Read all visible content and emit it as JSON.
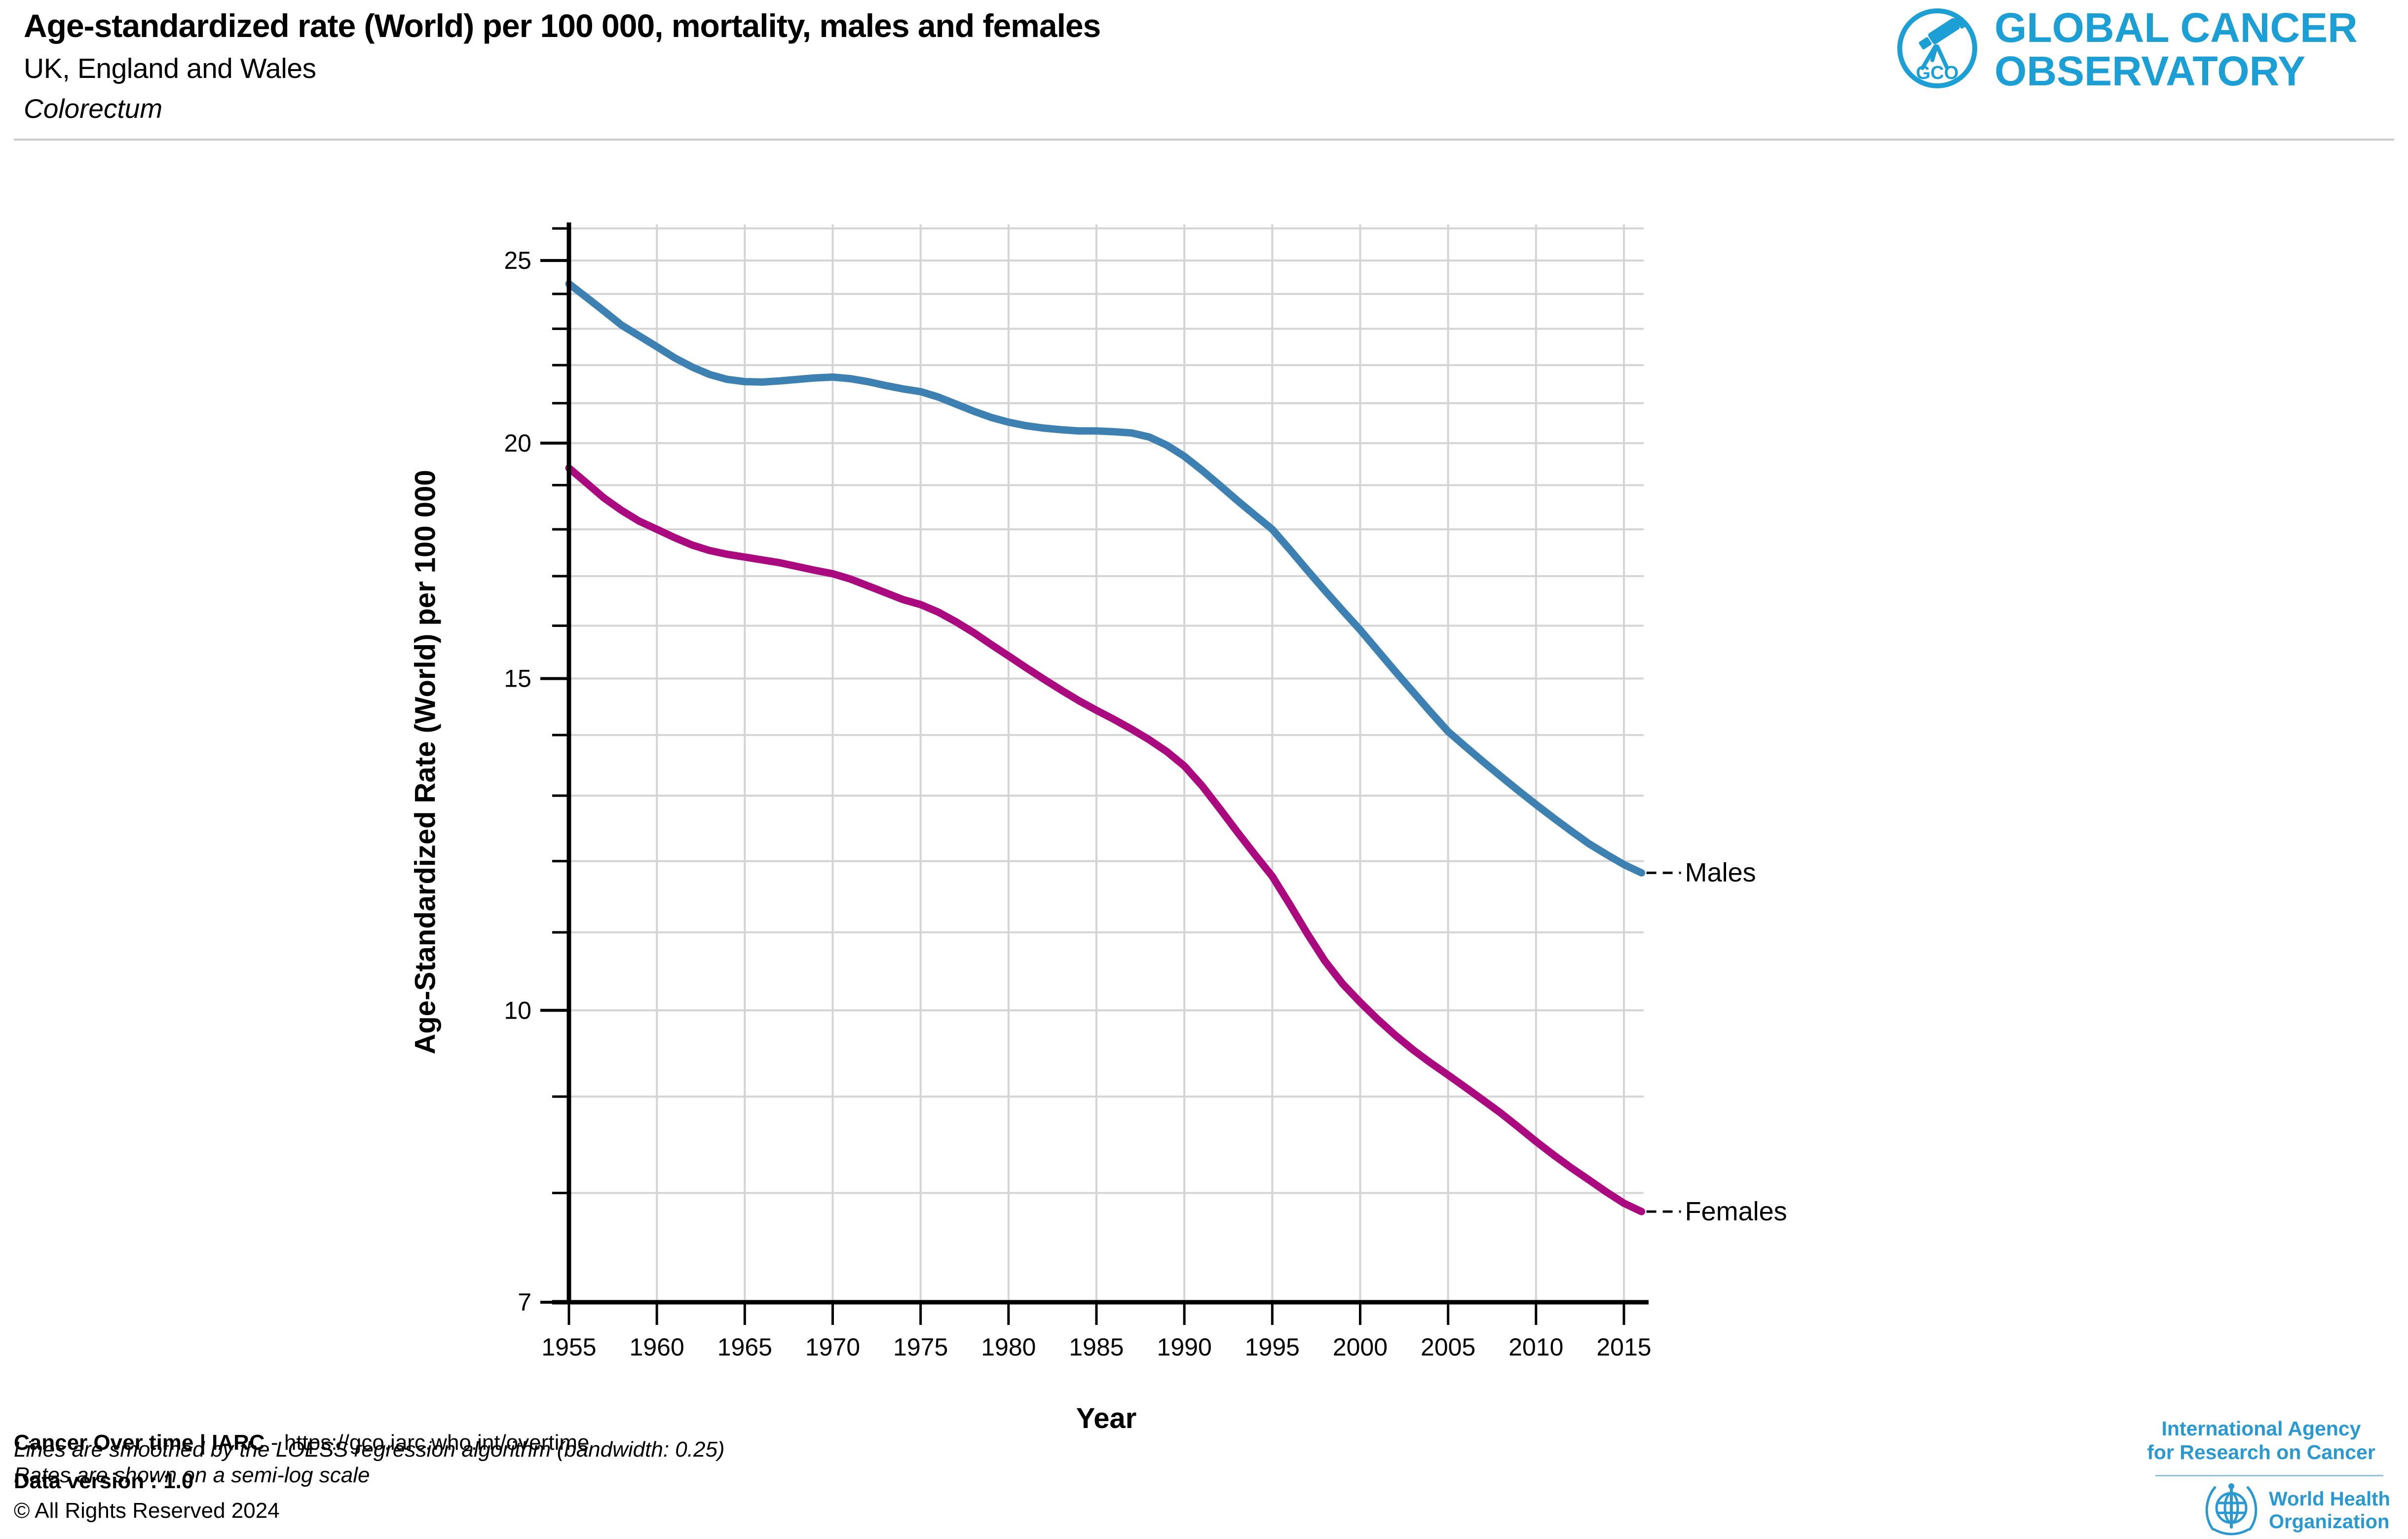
{
  "header": {
    "title": "Age-standardized rate (World) per 100 000, mortality, males and females",
    "subtitle": "UK, England and Wales",
    "cancer_site": "Colorectum"
  },
  "gco_logo": {
    "acronym": "GCO",
    "line1": "GLOBAL CANCER",
    "line2": "OBSERVATORY",
    "color": "#1B9FD4"
  },
  "chart_data": {
    "type": "line",
    "title": "Age-standardized rate (World) per 100 000, mortality, males and females",
    "subtitle": "UK, England and Wales",
    "annotation": "Colorectum",
    "xlabel": "Year",
    "ylabel": "Age-Standardized Rate (World) per 100 000",
    "y_scale": "log",
    "note": "semi-log scale, LOESS smoothed (bandwidth: 0.25)",
    "xlim": [
      1955,
      2016.2
    ],
    "ylim": [
      7,
      26.1
    ],
    "x_ticks": [
      1955,
      1960,
      1965,
      1970,
      1975,
      1980,
      1985,
      1990,
      1995,
      2000,
      2005,
      2010,
      2015
    ],
    "y_ticks_labeled": [
      25,
      20,
      15,
      10,
      7
    ],
    "y_ticks_minor": [
      8,
      9,
      11,
      12,
      13,
      14,
      16,
      17,
      18,
      19,
      21,
      22,
      23,
      24,
      26
    ],
    "grid": true,
    "legend_position": "end-of-line-labels",
    "series": [
      {
        "name": "Males",
        "color": "#3D80B2",
        "points": [
          [
            1955,
            24.3
          ],
          [
            1956,
            23.9
          ],
          [
            1957,
            23.5
          ],
          [
            1958,
            23.1
          ],
          [
            1959,
            22.8
          ],
          [
            1960,
            22.5
          ],
          [
            1961,
            22.2
          ],
          [
            1962,
            21.95
          ],
          [
            1963,
            21.75
          ],
          [
            1964,
            21.62
          ],
          [
            1965,
            21.56
          ],
          [
            1966,
            21.55
          ],
          [
            1967,
            21.58
          ],
          [
            1968,
            21.62
          ],
          [
            1969,
            21.66
          ],
          [
            1970,
            21.68
          ],
          [
            1971,
            21.64
          ],
          [
            1972,
            21.56
          ],
          [
            1973,
            21.46
          ],
          [
            1974,
            21.37
          ],
          [
            1975,
            21.3
          ],
          [
            1976,
            21.16
          ],
          [
            1977,
            20.98
          ],
          [
            1978,
            20.8
          ],
          [
            1979,
            20.64
          ],
          [
            1980,
            20.52
          ],
          [
            1981,
            20.43
          ],
          [
            1982,
            20.37
          ],
          [
            1983,
            20.33
          ],
          [
            1984,
            20.3
          ],
          [
            1985,
            20.3
          ],
          [
            1986,
            20.28
          ],
          [
            1987,
            20.25
          ],
          [
            1988,
            20.15
          ],
          [
            1989,
            19.95
          ],
          [
            1990,
            19.68
          ],
          [
            1991,
            19.35
          ],
          [
            1992,
            19.0
          ],
          [
            1993,
            18.65
          ],
          [
            1994,
            18.32
          ],
          [
            1995,
            18.0
          ],
          [
            1996,
            17.56
          ],
          [
            1997,
            17.12
          ],
          [
            1998,
            16.7
          ],
          [
            1999,
            16.3
          ],
          [
            2000,
            15.92
          ],
          [
            2001,
            15.52
          ],
          [
            2002,
            15.13
          ],
          [
            2003,
            14.76
          ],
          [
            2004,
            14.4
          ],
          [
            2005,
            14.06
          ],
          [
            2006,
            13.8
          ],
          [
            2007,
            13.55
          ],
          [
            2008,
            13.31
          ],
          [
            2009,
            13.08
          ],
          [
            2010,
            12.86
          ],
          [
            2011,
            12.65
          ],
          [
            2012,
            12.45
          ],
          [
            2013,
            12.26
          ],
          [
            2014,
            12.1
          ],
          [
            2015,
            11.95
          ],
          [
            2016,
            11.83
          ]
        ]
      },
      {
        "name": "Females",
        "color": "#AA0980",
        "points": [
          [
            1955,
            19.4
          ],
          [
            1956,
            19.05
          ],
          [
            1957,
            18.7
          ],
          [
            1958,
            18.42
          ],
          [
            1959,
            18.18
          ],
          [
            1960,
            18.0
          ],
          [
            1961,
            17.82
          ],
          [
            1962,
            17.66
          ],
          [
            1963,
            17.54
          ],
          [
            1964,
            17.46
          ],
          [
            1965,
            17.4
          ],
          [
            1966,
            17.34
          ],
          [
            1967,
            17.28
          ],
          [
            1968,
            17.2
          ],
          [
            1969,
            17.12
          ],
          [
            1970,
            17.05
          ],
          [
            1971,
            16.94
          ],
          [
            1972,
            16.8
          ],
          [
            1973,
            16.66
          ],
          [
            1974,
            16.52
          ],
          [
            1975,
            16.42
          ],
          [
            1976,
            16.27
          ],
          [
            1977,
            16.08
          ],
          [
            1978,
            15.87
          ],
          [
            1979,
            15.64
          ],
          [
            1980,
            15.42
          ],
          [
            1981,
            15.2
          ],
          [
            1982,
            14.99
          ],
          [
            1983,
            14.79
          ],
          [
            1984,
            14.6
          ],
          [
            1985,
            14.43
          ],
          [
            1986,
            14.27
          ],
          [
            1987,
            14.1
          ],
          [
            1988,
            13.92
          ],
          [
            1989,
            13.72
          ],
          [
            1990,
            13.48
          ],
          [
            1991,
            13.16
          ],
          [
            1992,
            12.8
          ],
          [
            1993,
            12.44
          ],
          [
            1994,
            12.1
          ],
          [
            1995,
            11.78
          ],
          [
            1996,
            11.38
          ],
          [
            1997,
            10.98
          ],
          [
            1998,
            10.62
          ],
          [
            1999,
            10.33
          ],
          [
            2000,
            10.1
          ],
          [
            2001,
            9.89
          ],
          [
            2002,
            9.7
          ],
          [
            2003,
            9.53
          ],
          [
            2004,
            9.38
          ],
          [
            2005,
            9.24
          ],
          [
            2006,
            9.1
          ],
          [
            2007,
            8.96
          ],
          [
            2008,
            8.82
          ],
          [
            2009,
            8.67
          ],
          [
            2010,
            8.52
          ],
          [
            2011,
            8.38
          ],
          [
            2012,
            8.25
          ],
          [
            2013,
            8.13
          ],
          [
            2014,
            8.01
          ],
          [
            2015,
            7.9
          ],
          [
            2016,
            7.82
          ]
        ]
      }
    ]
  },
  "footer": {
    "source_bold": "Cancer Over time | IARC",
    "source_rest": " - https://gco.iarc.who.int/overtime",
    "note1": "Lines are smoothed by the LOESS regression algorithm (bandwidth: 0.25)",
    "note2": "Rates are shown on a semi-log scale",
    "data_version": "Data version : 1.0",
    "copyright": "© All Rights Reserved 2024"
  },
  "attribution": {
    "iarc_line1": "International Agency",
    "iarc_line2": "for Research on Cancer",
    "who_line1": "World Health",
    "who_line2": "Organization",
    "color": "#2B99D1"
  },
  "colors": {
    "male": "#3D80B2",
    "female": "#AA0980",
    "grid": "#D4D4D4",
    "axis": "#000000",
    "divider": "#CCCCCC",
    "leader": "#111111"
  }
}
